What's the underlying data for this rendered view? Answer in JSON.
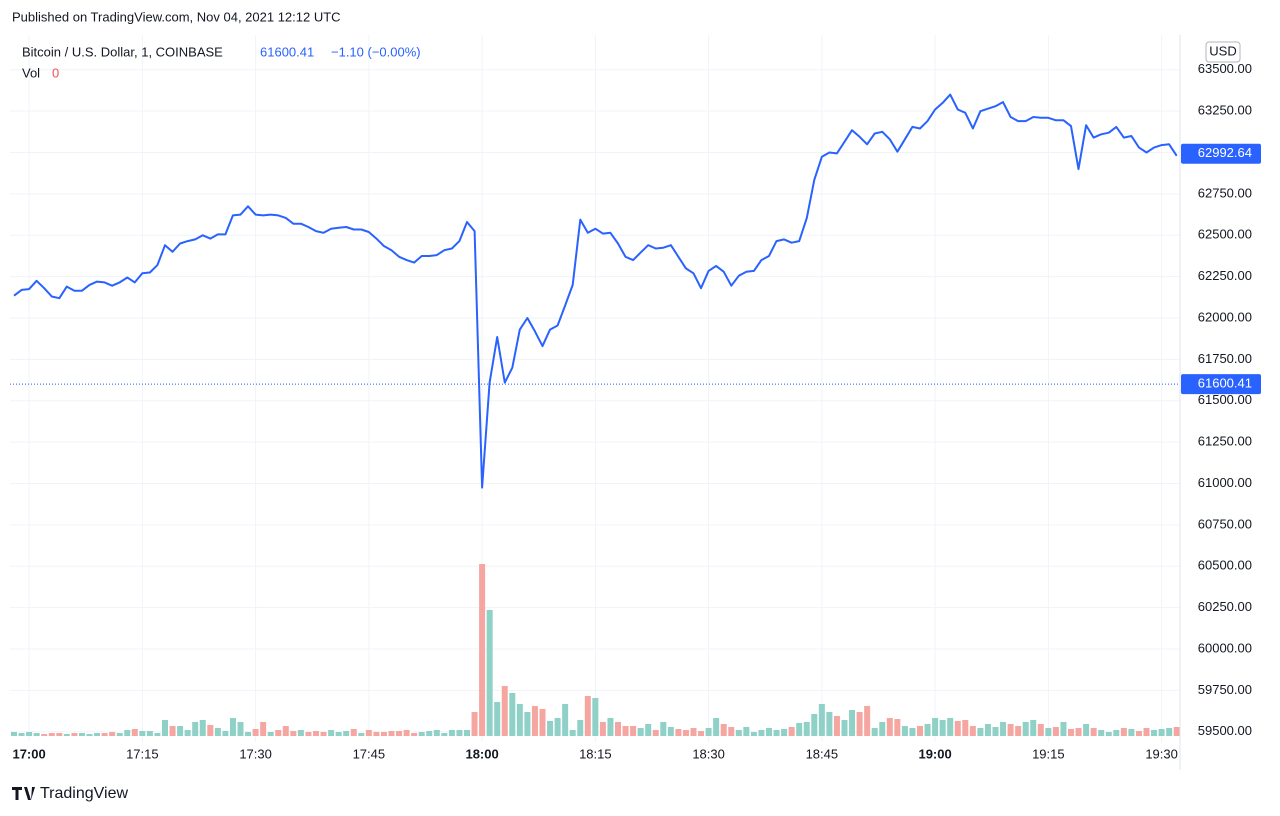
{
  "publish_note": "Published on TradingView.com, Nov 04, 2021 12:12 UTC",
  "logo": "TradingView",
  "chart_data": {
    "type": "line",
    "symbol": "Bitcoin / U.S. Dollar, 1, COINBASE",
    "price": 61600.41,
    "change": "−1.10 (−0.00%)",
    "volume_label": "Vol",
    "volume_value": 0,
    "currency": "USD",
    "last_price": 62992.64,
    "x": [
      "16:58",
      "16:59",
      "17:00",
      "17:01",
      "17:02",
      "17:03",
      "17:04",
      "17:05",
      "17:06",
      "17:07",
      "17:08",
      "17:09",
      "17:10",
      "17:11",
      "17:12",
      "17:13",
      "17:14",
      "17:15",
      "17:16",
      "17:17",
      "17:18",
      "17:19",
      "17:20",
      "17:21",
      "17:22",
      "17:23",
      "17:24",
      "17:25",
      "17:26",
      "17:27",
      "17:28",
      "17:29",
      "17:30",
      "17:31",
      "17:32",
      "17:33",
      "17:34",
      "17:35",
      "17:36",
      "17:37",
      "17:38",
      "17:39",
      "17:40",
      "17:41",
      "17:42",
      "17:43",
      "17:44",
      "17:45",
      "17:46",
      "17:47",
      "17:48",
      "17:49",
      "17:50",
      "17:51",
      "17:52",
      "17:53",
      "17:54",
      "17:55",
      "17:56",
      "17:57",
      "17:58",
      "17:59",
      "18:00",
      "18:01",
      "18:02",
      "18:03",
      "18:04",
      "18:05",
      "18:06",
      "18:07",
      "18:08",
      "18:09",
      "18:10",
      "18:11",
      "18:12",
      "18:13",
      "18:14",
      "18:15",
      "18:16",
      "18:17",
      "18:18",
      "18:19",
      "18:20",
      "18:21",
      "18:22",
      "18:23",
      "18:24",
      "18:25",
      "18:26",
      "18:27",
      "18:28",
      "18:29",
      "18:30",
      "18:31",
      "18:32",
      "18:33",
      "18:34",
      "18:35",
      "18:36",
      "18:37",
      "18:38",
      "18:39",
      "18:40",
      "18:41",
      "18:42",
      "18:43",
      "18:44",
      "18:45",
      "18:46",
      "18:47",
      "18:48",
      "18:49",
      "18:50",
      "18:51",
      "18:52",
      "18:53",
      "18:54",
      "18:55",
      "18:56",
      "18:57",
      "18:58",
      "18:59",
      "19:00",
      "19:01",
      "19:02",
      "19:03",
      "19:04",
      "19:05",
      "19:06",
      "19:07",
      "19:08",
      "19:09",
      "19:10",
      "19:11",
      "19:12",
      "19:13",
      "19:14",
      "19:15",
      "19:16",
      "19:17",
      "19:18",
      "19:19",
      "19:20",
      "19:21",
      "19:22",
      "19:23",
      "19:24",
      "19:25",
      "19:26",
      "19:27",
      "19:28",
      "19:29",
      "19:30",
      "19:31",
      "19:32"
    ],
    "series": [
      {
        "name": "Bitcoin / U.S. Dollar",
        "color": "#2962ff",
        "values": [
          62135,
          62170,
          62175,
          62225,
          62180,
          62130,
          62120,
          62190,
          62165,
          62165,
          62200,
          62220,
          62215,
          62195,
          62215,
          62245,
          62215,
          62270,
          62275,
          62320,
          62440,
          62400,
          62450,
          62465,
          62475,
          62500,
          62480,
          62505,
          62505,
          62620,
          62625,
          62675,
          62625,
          62620,
          62625,
          62620,
          62605,
          62570,
          62570,
          62550,
          62525,
          62515,
          62540,
          62545,
          62550,
          62535,
          62535,
          62520,
          62480,
          62435,
          62410,
          62370,
          62350,
          62335,
          62375,
          62375,
          62380,
          62410,
          62420,
          62465,
          62580,
          62525,
          60975,
          61610,
          61885,
          61610,
          61700,
          61930,
          62000,
          61920,
          61830,
          61930,
          61955,
          62075,
          62200,
          62595,
          62515,
          62540,
          62510,
          62515,
          62450,
          62370,
          62350,
          62395,
          62440,
          62420,
          62425,
          62440,
          62370,
          62300,
          62270,
          62180,
          62285,
          62315,
          62280,
          62195,
          62255,
          62280,
          62285,
          62350,
          62375,
          62465,
          62475,
          62455,
          62465,
          62605,
          62835,
          62975,
          63000,
          62995,
          63065,
          63135,
          63095,
          63050,
          63115,
          63125,
          63080,
          63005,
          63080,
          63155,
          63145,
          63190,
          63260,
          63300,
          63350,
          63260,
          63240,
          63145,
          63250,
          63265,
          63280,
          63305,
          63215,
          63190,
          63190,
          63215,
          63210,
          63210,
          63195,
          63195,
          63160,
          62900,
          63165,
          63090,
          63110,
          63120,
          63155,
          63090,
          63100,
          63030,
          63000,
          63030,
          63045,
          63050,
          62980
        ]
      }
    ],
    "volume": {
      "up_color": "#8fd1c7",
      "down_color": "#f5a6a1",
      "values": [
        4,
        3,
        4,
        3,
        2,
        3,
        3,
        2,
        3,
        3,
        2,
        3,
        3,
        4,
        3,
        6,
        7,
        5,
        5,
        3,
        16,
        10,
        10,
        6,
        14,
        16,
        11,
        8,
        5,
        18,
        14,
        4,
        7,
        14,
        4,
        6,
        10,
        5,
        6,
        4,
        5,
        4,
        6,
        4,
        5,
        7,
        3,
        6,
        4,
        4,
        5,
        5,
        6,
        3,
        4,
        5,
        6,
        3,
        6,
        6,
        6,
        24,
        172,
        126,
        34,
        50,
        43,
        32,
        24,
        30,
        27,
        15,
        18,
        32,
        6,
        16,
        40,
        38,
        14,
        18,
        14,
        10,
        10,
        8,
        12,
        6,
        14,
        9,
        7,
        6,
        8,
        5,
        8,
        18,
        12,
        9,
        6,
        9,
        4,
        6,
        8,
        6,
        7,
        9,
        13,
        14,
        22,
        32,
        24,
        20,
        16,
        26,
        24,
        30,
        8,
        14,
        18,
        17,
        10,
        8,
        10,
        12,
        18,
        16,
        18,
        15,
        16,
        10,
        8,
        12,
        9,
        14,
        12,
        10,
        14,
        16,
        12,
        8,
        9,
        14,
        7,
        8,
        12,
        8,
        6,
        4,
        6,
        8,
        7,
        5,
        8,
        6,
        7,
        8,
        9
      ]
    },
    "ylim": [
      59450,
      63680
    ],
    "yticks": [
      {
        "value": 59500,
        "label": "59500.00"
      },
      {
        "value": 59750,
        "label": "59750.00"
      },
      {
        "value": 60000,
        "label": "60000.00"
      },
      {
        "value": 60250,
        "label": "60250.00"
      },
      {
        "value": 60500,
        "label": "60500.00"
      },
      {
        "value": 60750,
        "label": "60750.00"
      },
      {
        "value": 61000,
        "label": "61000.00"
      },
      {
        "value": 61250,
        "label": "61250.00"
      },
      {
        "value": 61500,
        "label": "61500.00"
      },
      {
        "value": 61750,
        "label": "61750.00"
      },
      {
        "value": 62000,
        "label": "62000.00"
      },
      {
        "value": 62250,
        "label": "62250.00"
      },
      {
        "value": 62500,
        "label": "62500.00"
      },
      {
        "value": 62750,
        "label": "62750.00"
      },
      {
        "value": 63000,
        "label": "63000.00"
      },
      {
        "value": 63250,
        "label": "63250.00"
      },
      {
        "value": 63500,
        "label": "63500.00"
      }
    ],
    "xticks": [
      "17:00",
      "17:15",
      "17:30",
      "17:45",
      "18:00",
      "18:15",
      "18:30",
      "18:45",
      "19:00",
      "19:15",
      "19:30"
    ],
    "grid": true
  }
}
